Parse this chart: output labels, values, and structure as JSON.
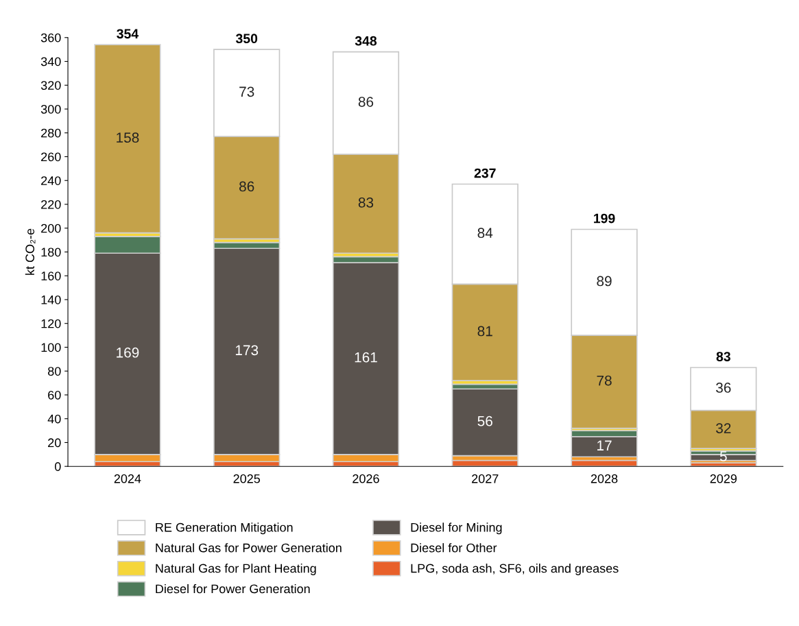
{
  "chart_data": {
    "type": "bar",
    "stacked": true,
    "ylabel": "kt CO₂-e",
    "categories": [
      "2024",
      "2025",
      "2026",
      "2027",
      "2028",
      "2029"
    ],
    "series": [
      {
        "name": "LPG, soda ash, SF6, oils and greases",
        "color": "#e8602a",
        "values": [
          4,
          4,
          4,
          5,
          5,
          3
        ],
        "value_labels": [
          null,
          null,
          null,
          null,
          null,
          null
        ]
      },
      {
        "name": "Diesel for Other",
        "color": "#f39a2b",
        "values": [
          6,
          6,
          6,
          4,
          3,
          2
        ],
        "value_labels": [
          null,
          null,
          null,
          null,
          null,
          null
        ]
      },
      {
        "name": "Diesel for Mining",
        "color": "#5a534e",
        "values": [
          169,
          173,
          161,
          56,
          17,
          5
        ],
        "value_labels": [
          "169",
          "173",
          "161",
          "56",
          "17",
          "5"
        ]
      },
      {
        "name": "Diesel for Power Generation",
        "color": "#4e7a5a",
        "values": [
          14,
          5,
          5,
          4,
          5,
          3
        ],
        "value_labels": [
          null,
          null,
          null,
          null,
          null,
          null
        ]
      },
      {
        "name": "Natural Gas for Plant Heating",
        "color": "#f5d63a",
        "values": [
          3,
          3,
          3,
          3,
          2,
          2
        ],
        "value_labels": [
          null,
          null,
          null,
          null,
          null,
          null
        ]
      },
      {
        "name": "Natural Gas for Power Generation",
        "color": "#c4a24a",
        "values": [
          158,
          86,
          83,
          81,
          78,
          32
        ],
        "value_labels": [
          "158",
          "86",
          "83",
          "81",
          "78",
          "32"
        ]
      },
      {
        "name": "RE Generation Mitigation",
        "color": "#ffffff",
        "values": [
          null,
          73,
          86,
          84,
          89,
          36
        ],
        "value_labels": [
          null,
          "73",
          "86",
          "84",
          "89",
          "36"
        ]
      }
    ],
    "totals": [
      "354",
      "350",
      "348",
      "237",
      "199",
      "83"
    ],
    "ylim": [
      0,
      360
    ],
    "yticks": [
      0,
      20,
      40,
      60,
      80,
      100,
      120,
      140,
      160,
      180,
      200,
      220,
      240,
      260,
      280,
      300,
      320,
      340,
      360
    ],
    "grid": false,
    "legend": "bottom"
  }
}
